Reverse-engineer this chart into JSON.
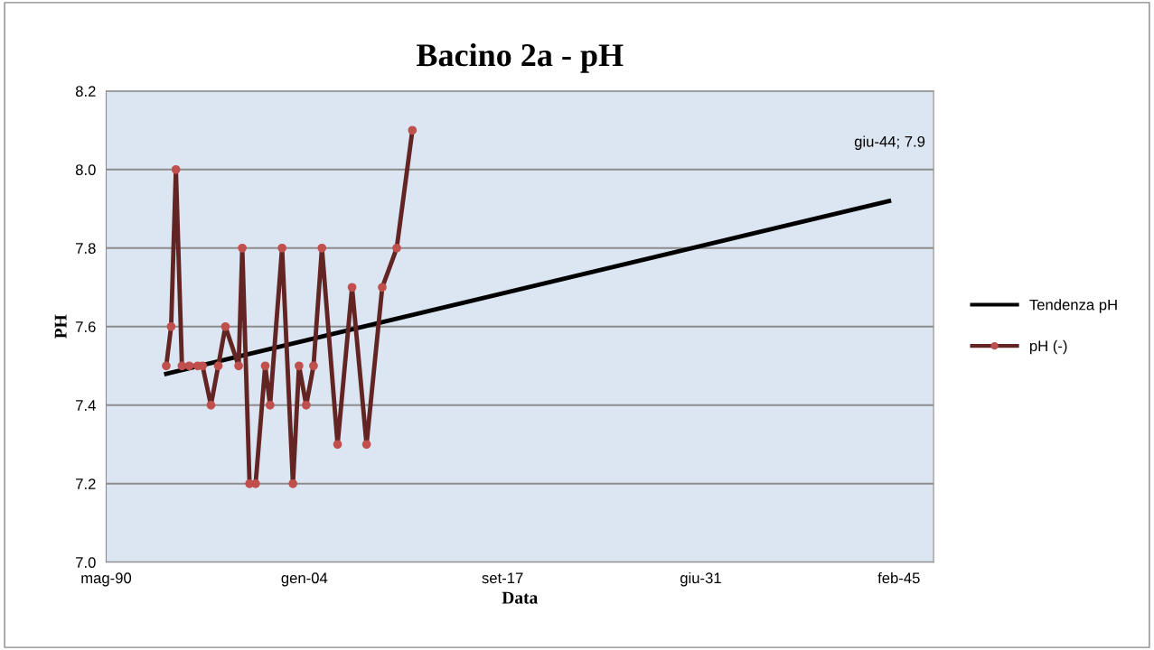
{
  "chart_data": {
    "type": "line",
    "title": "Bacino 2a - pH",
    "xlabel": "Data",
    "ylabel": "PH",
    "xlim": [
      "1990-05-07",
      "2047-07-01"
    ],
    "xticks": [
      {
        "value": "1990-05-07",
        "label": "mag-90"
      },
      {
        "value": "2004-01-14",
        "label": "gen-04"
      },
      {
        "value": "2017-09-22",
        "label": "set-17"
      },
      {
        "value": "2031-06-01",
        "label": "giu-31"
      },
      {
        "value": "2045-02-07",
        "label": "feb-45"
      }
    ],
    "ylim": [
      7.0,
      8.2
    ],
    "yticks": [
      {
        "value": 7.0,
        "label": "7.0"
      },
      {
        "value": 7.2,
        "label": "7.2"
      },
      {
        "value": 7.4,
        "label": "7.4"
      },
      {
        "value": 7.6,
        "label": "7.6"
      },
      {
        "value": 7.8,
        "label": "7.8"
      },
      {
        "value": 8.0,
        "label": "8.0"
      },
      {
        "value": 8.2,
        "label": "8.2"
      }
    ],
    "grid": "y",
    "legend": "right",
    "line_style": "solid",
    "annotations": [
      "giu-44; 7.9"
    ],
    "series": [
      {
        "name": "Tendenza pH",
        "color": "#000000",
        "marker": "none",
        "x": [
          "1994-07",
          "2044-06"
        ],
        "values": [
          7.48,
          7.92
        ]
      },
      {
        "name": "pH (-)",
        "color": "#632523",
        "marker": "circle",
        "x": [
          "1994-07",
          "1994-11",
          "1995-03",
          "1995-08",
          "1996-02",
          "1996-09",
          "1997-01",
          "1997-08",
          "1998-02",
          "1998-08",
          "1999-07",
          "1999-10",
          "2000-04",
          "2000-09",
          "2001-05",
          "2001-09",
          "2002-07",
          "2003-04",
          "2003-09",
          "2004-03",
          "2004-09",
          "2005-04",
          "2006-05",
          "2007-05",
          "2008-05",
          "2009-06",
          "2010-06",
          "2011-07"
        ],
        "values": [
          7.5,
          7.6,
          8.0,
          7.5,
          7.5,
          7.5,
          7.5,
          7.4,
          7.5,
          7.6,
          7.5,
          7.8,
          7.2,
          7.2,
          7.5,
          7.4,
          7.8,
          7.2,
          7.5,
          7.4,
          7.5,
          7.8,
          7.3,
          7.7,
          7.3,
          7.7,
          7.8,
          8.1
        ]
      }
    ]
  }
}
